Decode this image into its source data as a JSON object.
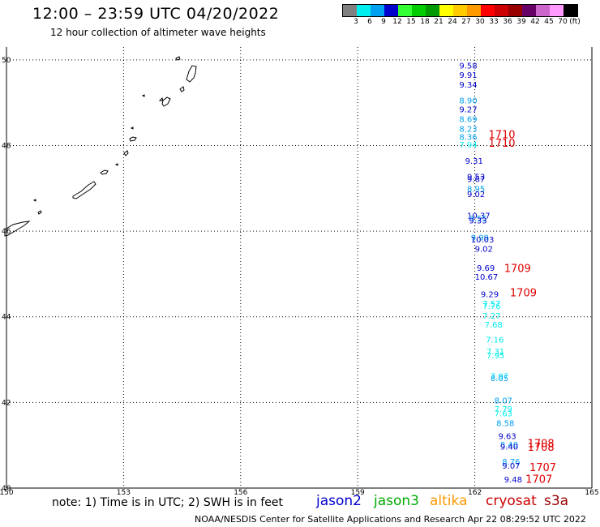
{
  "header": {
    "title": "12:00 – 23:59 UTC 04/20/2022",
    "subtitle": "12 hour collection of altimeter wave heights"
  },
  "legend": {
    "unit": "(ft)",
    "bins": [
      {
        "label": "3",
        "color": "#808080"
      },
      {
        "label": "6",
        "color": "#00eeee"
      },
      {
        "label": "9",
        "color": "#00a0f0"
      },
      {
        "label": "12",
        "color": "#0000cc"
      },
      {
        "label": "15",
        "color": "#33ff33"
      },
      {
        "label": "18",
        "color": "#00cc00"
      },
      {
        "label": "21",
        "color": "#009900"
      },
      {
        "label": "24",
        "color": "#ffff00"
      },
      {
        "label": "27",
        "color": "#ffcc00"
      },
      {
        "label": "30",
        "color": "#ff9900"
      },
      {
        "label": "33",
        "color": "#ff0000"
      },
      {
        "label": "36",
        "color": "#cc0000"
      },
      {
        "label": "39",
        "color": "#990000"
      },
      {
        "label": "42",
        "color": "#660066"
      },
      {
        "label": "45",
        "color": "#cc66cc"
      },
      {
        "label": "70",
        "color": "#ff99ff"
      },
      {
        "label": "",
        "color": "#000000"
      }
    ]
  },
  "map": {
    "lon_labels": [
      "150",
      "153",
      "156",
      "159",
      "162",
      "165"
    ],
    "lat_labels": [
      "40",
      "42",
      "44",
      "46",
      "48",
      "50"
    ],
    "lon_range": [
      150,
      165
    ],
    "lat_range": [
      40,
      50.3
    ]
  },
  "observations": [
    {
      "value": "9.58",
      "color": "#0000cc",
      "lon": 161.6,
      "lat": 49.8
    },
    {
      "value": "9.91",
      "color": "#0000cc",
      "lon": 161.6,
      "lat": 49.58
    },
    {
      "value": "9.34",
      "color": "#0000cc",
      "lon": 161.6,
      "lat": 49.35
    },
    {
      "value": "8.90",
      "color": "#00a0f0",
      "lon": 161.6,
      "lat": 48.98
    },
    {
      "value": "9.27",
      "color": "#0000cc",
      "lon": 161.6,
      "lat": 48.78
    },
    {
      "value": "8.69",
      "color": "#00a0f0",
      "lon": 161.6,
      "lat": 48.55
    },
    {
      "value": "8.23",
      "color": "#00a0f0",
      "lon": 161.6,
      "lat": 48.32
    },
    {
      "value": "8.36",
      "color": "#00a0f0",
      "lon": 161.6,
      "lat": 48.13
    },
    {
      "value": "7.94",
      "color": "#00eeee",
      "lon": 161.6,
      "lat": 47.95
    },
    {
      "value": "9.31",
      "color": "#0000cc",
      "lon": 161.75,
      "lat": 47.57
    },
    {
      "value": "9.53",
      "color": "#0000cc",
      "lon": 161.8,
      "lat": 47.2
    },
    {
      "value": "9.67",
      "color": "#0000cc",
      "lon": 161.8,
      "lat": 47.15
    },
    {
      "value": "8.95",
      "color": "#00a0f0",
      "lon": 161.8,
      "lat": 46.92
    },
    {
      "value": "9.02",
      "color": "#0000cc",
      "lon": 161.8,
      "lat": 46.8
    },
    {
      "value": "10.37",
      "color": "#0000cc",
      "lon": 161.8,
      "lat": 46.3
    },
    {
      "value": "9.55",
      "color": "#00a0f0",
      "lon": 161.85,
      "lat": 46.23
    },
    {
      "value": "9.33",
      "color": "#0000cc",
      "lon": 161.85,
      "lat": 46.18
    },
    {
      "value": "9.99",
      "color": "#00a0f0",
      "lon": 161.9,
      "lat": 45.78
    },
    {
      "value": "10.03",
      "color": "#0000cc",
      "lon": 161.9,
      "lat": 45.74
    },
    {
      "value": "9.02",
      "color": "#0000cc",
      "lon": 162.0,
      "lat": 45.52
    },
    {
      "value": "9.69",
      "color": "#0000cc",
      "lon": 162.05,
      "lat": 45.07
    },
    {
      "value": "10.67",
      "color": "#0000cc",
      "lon": 162.0,
      "lat": 44.87
    },
    {
      "value": "9.29",
      "color": "#0000cc",
      "lon": 162.15,
      "lat": 44.46
    },
    {
      "value": "7.57",
      "color": "#00eeee",
      "lon": 162.2,
      "lat": 44.24
    },
    {
      "value": "7.76",
      "color": "#00eeee",
      "lon": 162.2,
      "lat": 44.18
    },
    {
      "value": "7.27",
      "color": "#00eeee",
      "lon": 162.2,
      "lat": 43.96
    },
    {
      "value": "7.68",
      "color": "#00eeee",
      "lon": 162.25,
      "lat": 43.75
    },
    {
      "value": "7.16",
      "color": "#00eeee",
      "lon": 162.28,
      "lat": 43.4
    },
    {
      "value": "7.31",
      "color": "#00eeee",
      "lon": 162.3,
      "lat": 43.12
    },
    {
      "value": "7.95",
      "color": "#00eeee",
      "lon": 162.3,
      "lat": 43.03
    },
    {
      "value": "7.97",
      "color": "#00eeee",
      "lon": 162.4,
      "lat": 42.55
    },
    {
      "value": "8.05",
      "color": "#00a0f0",
      "lon": 162.4,
      "lat": 42.5
    },
    {
      "value": "8.07",
      "color": "#00a0f0",
      "lon": 162.5,
      "lat": 41.98
    },
    {
      "value": "7.79",
      "color": "#00eeee",
      "lon": 162.5,
      "lat": 41.78
    },
    {
      "value": "7.63",
      "color": "#00eeee",
      "lon": 162.5,
      "lat": 41.68
    },
    {
      "value": "8.58",
      "color": "#00a0f0",
      "lon": 162.55,
      "lat": 41.45
    },
    {
      "value": "9.63",
      "color": "#0000cc",
      "lon": 162.6,
      "lat": 41.15
    },
    {
      "value": "8.40",
      "color": "#00a0f0",
      "lon": 162.65,
      "lat": 40.95
    },
    {
      "value": "9.40",
      "color": "#0000cc",
      "lon": 162.65,
      "lat": 40.9
    },
    {
      "value": "8.76",
      "color": "#00a0f0",
      "lon": 162.7,
      "lat": 40.55
    },
    {
      "value": "9.07",
      "color": "#0000cc",
      "lon": 162.7,
      "lat": 40.45
    },
    {
      "value": "9.48",
      "color": "#0000cc",
      "lon": 162.75,
      "lat": 40.13
    }
  ],
  "track_labels": [
    {
      "value": "1710",
      "lon": 162.35,
      "lat": 48.17
    },
    {
      "value": "1710",
      "lon": 162.35,
      "lat": 47.97
    },
    {
      "value": "1709",
      "lon": 162.75,
      "lat": 45.05
    },
    {
      "value": "1709",
      "lon": 162.9,
      "lat": 44.48
    },
    {
      "value": "1708",
      "lon": 163.35,
      "lat": 40.96
    },
    {
      "value": "1708",
      "lon": 163.35,
      "lat": 40.87
    },
    {
      "value": "1707",
      "lon": 163.4,
      "lat": 40.4
    },
    {
      "value": "1707",
      "lon": 163.3,
      "lat": 40.12
    }
  ],
  "footer": {
    "note": "note: 1) Time is in UTC; 2) SWH is in feet",
    "satellites": [
      {
        "name": "jason2",
        "color": "#0000cc"
      },
      {
        "name": "jason3",
        "color": "#00aa00"
      },
      {
        "name": "altika",
        "color": "#ff9900"
      },
      {
        "name": "cryosat",
        "color": "#cc0000"
      },
      {
        "name": "s3a",
        "color": "#990000"
      }
    ],
    "credit": "NOAA/NESDIS Center for Satellite Applications and Research    Apr 22 08:29:52 UTC 2022"
  }
}
